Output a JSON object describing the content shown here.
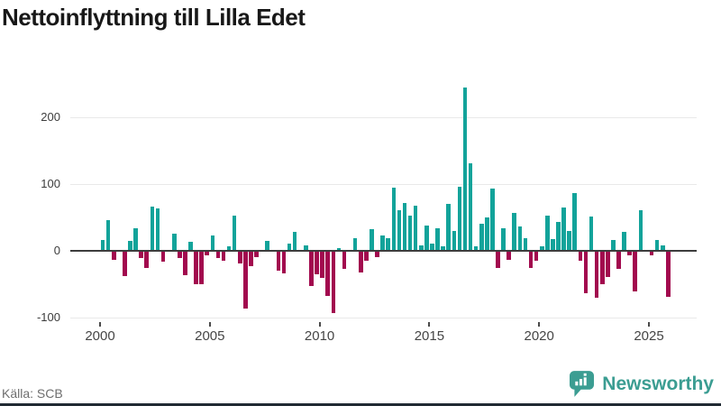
{
  "title": "Nettoinflyttning till Lilla Edet",
  "source": "Källa: SCB",
  "branding": {
    "logo_text": "Newsworthy",
    "logo_icon": "speech-bubble-bar-chart-icon",
    "brand_color": "#3b9d92"
  },
  "colors": {
    "positive_bar": "#12a39a",
    "negative_bar": "#a2094e",
    "zero_line": "#3d3d3d",
    "gridline": "#e9e9e9",
    "bottom_rule": "#202a33"
  },
  "chart_data": {
    "type": "bar",
    "title": "Nettoinflyttning till Lilla Edet",
    "frequency": "quarterly",
    "start": "2000 Q1",
    "end": "2025 Q4",
    "x_tick_labels": [
      "2000",
      "2005",
      "2010",
      "2015",
      "2020",
      "2025"
    ],
    "y_tick_labels": [
      "200",
      "100",
      "0",
      "-100"
    ],
    "y_tick_values": [
      200,
      100,
      0,
      -100
    ],
    "ylim": [
      -110,
      260
    ],
    "grid": "horizontal",
    "legend": "none",
    "values": [
      15,
      45,
      -12,
      0,
      -37,
      13,
      32,
      -9,
      -24,
      65,
      62,
      -15,
      0,
      24,
      -10,
      -35,
      12,
      -49,
      -48,
      -5,
      21,
      -9,
      -14,
      6,
      52,
      -17,
      -85,
      -22,
      -8,
      0,
      13,
      0,
      -28,
      -32,
      9,
      27,
      0,
      7,
      -52,
      -34,
      -39,
      -66,
      -92,
      3,
      -26,
      0,
      17,
      -31,
      -14,
      31,
      -8,
      21,
      17,
      93,
      60,
      70,
      52,
      66,
      7,
      36,
      10,
      33,
      5,
      69,
      29,
      94,
      243,
      130,
      5,
      39,
      49,
      92,
      -24,
      32,
      -12,
      56,
      35,
      17,
      -24,
      -13,
      5,
      51,
      16,
      42,
      63,
      28,
      85,
      -14,
      -62,
      50,
      -69,
      -48,
      -38,
      15,
      -26,
      27,
      -6,
      -59,
      60,
      0,
      -6,
      15,
      7,
      -68
    ]
  }
}
